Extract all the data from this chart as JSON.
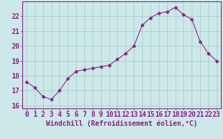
{
  "x": [
    0,
    1,
    2,
    3,
    4,
    5,
    6,
    7,
    8,
    9,
    10,
    11,
    12,
    13,
    14,
    15,
    16,
    17,
    18,
    19,
    20,
    21,
    22,
    23
  ],
  "y": [
    17.6,
    17.2,
    16.6,
    16.4,
    17.0,
    17.8,
    18.3,
    18.4,
    18.5,
    18.6,
    18.7,
    19.1,
    19.5,
    20.0,
    21.4,
    21.9,
    22.2,
    22.3,
    22.6,
    22.1,
    21.8,
    20.3,
    19.5,
    19.0
  ],
  "line_color": "#882288",
  "marker": "D",
  "marker_size": 2.5,
  "bg_color": "#cce8e8",
  "grid_color": "#aacccc",
  "xlabel": "Windchill (Refroidissement éolien,°C)",
  "xlabel_fontsize": 7,
  "tick_fontsize": 7,
  "xlim": [
    -0.5,
    23.5
  ],
  "ylim": [
    15.8,
    23.0
  ],
  "yticks": [
    16,
    17,
    18,
    19,
    20,
    21,
    22
  ],
  "xticks": [
    0,
    1,
    2,
    3,
    4,
    5,
    6,
    7,
    8,
    9,
    10,
    11,
    12,
    13,
    14,
    15,
    16,
    17,
    18,
    19,
    20,
    21,
    22,
    23
  ]
}
